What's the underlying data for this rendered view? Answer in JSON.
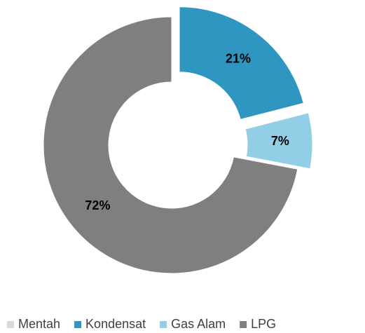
{
  "chart_data": {
    "type": "donut",
    "categories": [
      "Mentah",
      "Kondensat",
      "Gas Alam",
      "LPG"
    ],
    "values": [
      0,
      21,
      7,
      72
    ],
    "value_labels": [
      null,
      "21%",
      "7%",
      "72%"
    ],
    "colors": [
      "#d9d9d9",
      "#2e96c0",
      "#92cfe6",
      "#7f7f7f"
    ],
    "legend": "bottom"
  }
}
